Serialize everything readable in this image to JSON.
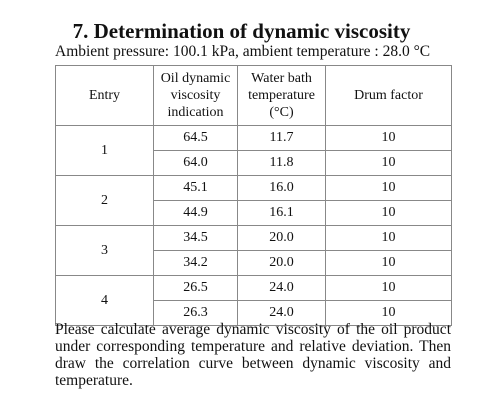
{
  "title": "7. Determination of dynamic viscosity",
  "conditions": "Ambient pressure: 100.1 kPa, ambient temperature : 28.0 °C",
  "table": {
    "headers": {
      "entry": [
        "Entry"
      ],
      "oil": [
        "Oil dynamic",
        "viscosity",
        "indication"
      ],
      "water": [
        "Water bath",
        "temperature",
        "(°C)"
      ],
      "drum": [
        "Drum factor"
      ]
    },
    "entries": [
      {
        "label": "1",
        "rows": [
          {
            "oil": "64.5",
            "water": "11.7",
            "drum": "10"
          },
          {
            "oil": "64.0",
            "water": "11.8",
            "drum": "10"
          }
        ]
      },
      {
        "label": "2",
        "rows": [
          {
            "oil": "45.1",
            "water": "16.0",
            "drum": "10"
          },
          {
            "oil": "44.9",
            "water": "16.1",
            "drum": "10"
          }
        ]
      },
      {
        "label": "3",
        "rows": [
          {
            "oil": "34.5",
            "water": "20.0",
            "drum": "10"
          },
          {
            "oil": "34.2",
            "water": "20.0",
            "drum": "10"
          }
        ]
      },
      {
        "label": "4",
        "rows": [
          {
            "oil": "26.5",
            "water": "24.0",
            "drum": "10"
          },
          {
            "oil": "26.3",
            "water": "24.0",
            "drum": "10"
          }
        ]
      }
    ]
  },
  "question": "Please calculate average dynamic viscosity of the oil product under corresponding temperature and relative deviation. Then draw the correlation curve between dynamic viscosity and temperature."
}
